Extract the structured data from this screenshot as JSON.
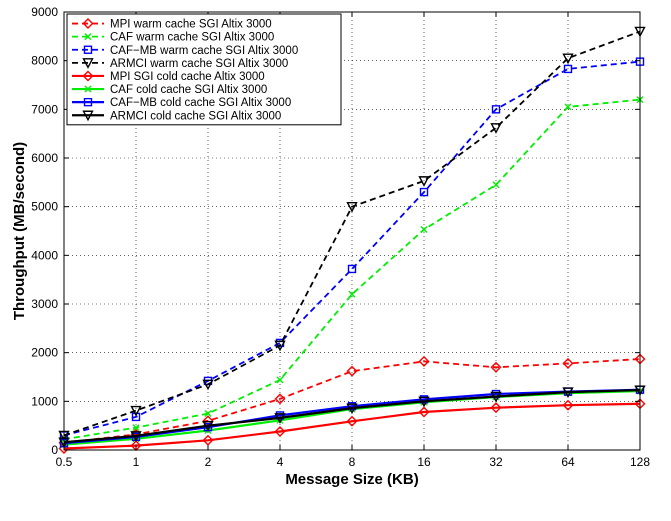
{
  "chart_data": {
    "type": "line",
    "title": "",
    "xlabel": "Message Size (KB)",
    "ylabel": "Throughput (MB/second)",
    "x_scale": "log2",
    "x": [
      0.5,
      1,
      2,
      4,
      8,
      16,
      32,
      64,
      128
    ],
    "x_tick_labels": [
      "0.5",
      "1",
      "2",
      "4",
      "8",
      "16",
      "32",
      "64",
      "128"
    ],
    "ylim": [
      0,
      9000
    ],
    "y_ticks": [
      0,
      1000,
      2000,
      3000,
      4000,
      5000,
      6000,
      7000,
      8000,
      9000
    ],
    "grid": true,
    "legend_position": "top-left",
    "series": [
      {
        "name": "MPI warm cache SGI Altix 3000",
        "color": "#ff0000",
        "linestyle": "dashed",
        "marker": "diamond",
        "values": [
          150,
          320,
          600,
          1050,
          1620,
          1820,
          1700,
          1780,
          1870
        ]
      },
      {
        "name": "CAF  warm cache SGI Altix 3000",
        "color": "#00ee00",
        "linestyle": "dashed",
        "marker": "x",
        "values": [
          220,
          460,
          750,
          1440,
          3200,
          4530,
          5450,
          7050,
          7200
        ]
      },
      {
        "name": "CAF−MB warm cache SGI Altix 3000",
        "color": "#0000ff",
        "linestyle": "dashed",
        "marker": "square",
        "values": [
          300,
          680,
          1420,
          2200,
          3720,
          5300,
          7000,
          7830,
          7980
        ]
      },
      {
        "name": "ARMCI warm cache SGI Altix 3000",
        "color": "#000000",
        "linestyle": "dashed",
        "marker": "triangle-down",
        "values": [
          300,
          810,
          1350,
          2150,
          5000,
          5530,
          6620,
          8050,
          8600
        ]
      },
      {
        "name": "MPI SGI cold cache Altix 3000",
        "color": "#ff0000",
        "linestyle": "solid",
        "marker": "diamond",
        "values": [
          30,
          90,
          200,
          380,
          590,
          780,
          870,
          920,
          950
        ]
      },
      {
        "name": "CAF cold cache SGI Altix 3000",
        "color": "#00ee00",
        "linestyle": "solid",
        "marker": "x",
        "values": [
          110,
          230,
          400,
          610,
          840,
          980,
          1090,
          1170,
          1210
        ]
      },
      {
        "name": "CAF−MB cold cache SGI Altix 3000",
        "color": "#0000ff",
        "linestyle": "solid",
        "marker": "square",
        "values": [
          140,
          270,
          470,
          710,
          900,
          1040,
          1150,
          1200,
          1240
        ]
      },
      {
        "name": "ARMCI cold cache SGI Altix 3000",
        "color": "#000000",
        "linestyle": "solid",
        "marker": "triangle-down",
        "values": [
          160,
          290,
          500,
          660,
          860,
          1000,
          1100,
          1190,
          1230
        ]
      }
    ]
  }
}
